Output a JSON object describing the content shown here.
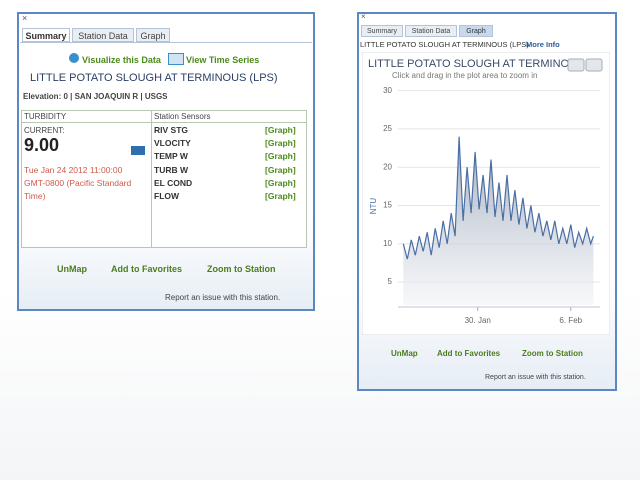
{
  "left_panel": {
    "close": "×",
    "tabs": [
      "Summary",
      "Station Data",
      "Graph"
    ],
    "links": [
      "Visualize this Data",
      "View Time Series"
    ],
    "title": "LITTLE POTATO SLOUGH AT TERMINOUS (LPS)",
    "elevation": "Elevation: 0 | SAN JOAQUIN R | USGS",
    "sensor_name": "TURBIDITY",
    "current_label": "CURRENT:",
    "current_value": "9.00",
    "timestamp": "Tue Jan 24 2012 11:00:00 GMT-0800 (Pacific Standard Time)",
    "sensors_header": "Station Sensors",
    "sensors": [
      {
        "name": "RIV STG",
        "link": "[Graph]"
      },
      {
        "name": "VLOCITY",
        "link": "[Graph]"
      },
      {
        "name": "TEMP W",
        "link": "[Graph]"
      },
      {
        "name": "TURB W",
        "link": "[Graph]"
      },
      {
        "name": "EL COND",
        "link": "[Graph]"
      },
      {
        "name": "FLOW",
        "link": "[Graph]"
      }
    ],
    "buttons": [
      "UnMap",
      "Add to Favorites",
      "Zoom to Station"
    ],
    "report": "Report an issue with this station."
  },
  "right_panel": {
    "close": "×",
    "tabs": [
      "Summary",
      "Station Data",
      "Graph"
    ],
    "title": "LITTLE POTATO SLOUGH AT TERMINOUS (LPS)",
    "more_info": "More Info",
    "buttons": [
      "UnMap",
      "Add to Favorites",
      "Zoom to Station"
    ],
    "report": "Report an issue with this station."
  },
  "chart_data": {
    "type": "line",
    "title": "LITTLE POTATO SLOUGH AT TERMINO",
    "subtitle": "Click and drag in the plot area to zoom in",
    "y_label": "NTU",
    "color": "#4a6fa5",
    "grid": true,
    "x": [
      24.4,
      24.7,
      25.0,
      25.3,
      25.6,
      25.9,
      26.2,
      26.5,
      26.8,
      27.1,
      27.4,
      27.7,
      28.0,
      28.3,
      28.6,
      28.9,
      29.2,
      29.5,
      29.8,
      30.1,
      30.4,
      30.7,
      31.0,
      31.3,
      31.6,
      31.9,
      32.2,
      32.5,
      32.8,
      33.1,
      33.4,
      33.7,
      34.0,
      34.3,
      34.6,
      34.9,
      35.2,
      35.5,
      35.8,
      36.1,
      36.4,
      36.7,
      37.0,
      37.3,
      37.6,
      37.9,
      38.2,
      38.5,
      38.7
    ],
    "values": [
      10,
      8,
      10.5,
      8.5,
      11,
      9,
      11.5,
      8.5,
      12,
      9.5,
      13,
      10,
      14,
      11,
      24,
      13,
      20,
      14,
      22,
      14.5,
      19,
      14,
      21,
      13.5,
      18,
      13,
      19,
      13,
      17,
      12.5,
      16,
      12,
      15,
      11.5,
      14,
      11,
      13,
      10.5,
      13,
      10,
      12,
      10,
      12.5,
      9.5,
      11.5,
      10,
      12,
      10,
      11
    ],
    "xlim": [
      24,
      39.2
    ],
    "xticks": [
      {
        "value": 30,
        "label": "30. Jan"
      },
      {
        "value": 37,
        "label": "6. Feb"
      }
    ],
    "ylim": [
      2,
      31
    ],
    "yticks": [
      5,
      10,
      15,
      20,
      25,
      30
    ]
  }
}
